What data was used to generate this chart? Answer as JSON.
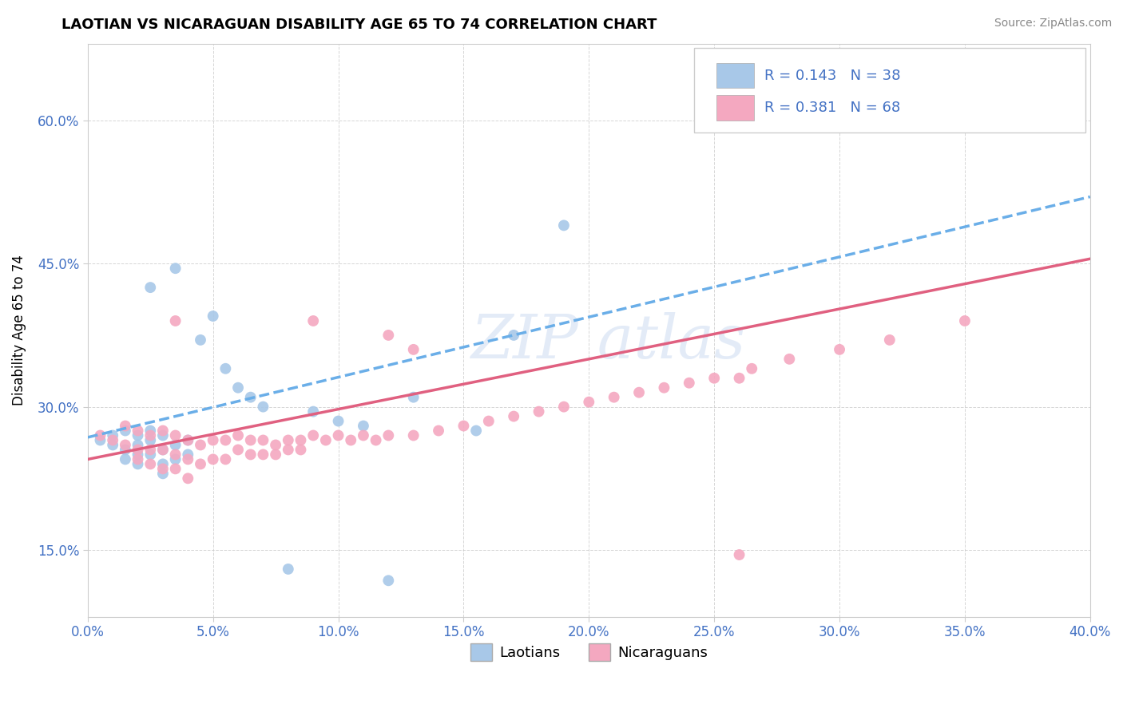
{
  "title": "LAOTIAN VS NICARAGUAN DISABILITY AGE 65 TO 74 CORRELATION CHART",
  "source_text": "Source: ZipAtlas.com",
  "xlim": [
    0.0,
    0.4
  ],
  "ylim": [
    0.08,
    0.68
  ],
  "x_ticks": [
    0.0,
    0.05,
    0.1,
    0.15,
    0.2,
    0.25,
    0.3,
    0.35,
    0.4
  ],
  "y_ticks": [
    0.15,
    0.3,
    0.45,
    0.6
  ],
  "r_laotian": 0.143,
  "n_laotian": 38,
  "r_nicaraguan": 0.381,
  "n_nicaraguan": 68,
  "color_laotian": "#a8c8e8",
  "color_nicaraguan": "#f4a8c0",
  "color_blue": "#4472c4",
  "trend_laotian_color": "#6aaee8",
  "trend_nicaraguan_color": "#e06080",
  "laotian_x": [
    0.005,
    0.01,
    0.01,
    0.015,
    0.015,
    0.015,
    0.02,
    0.02,
    0.02,
    0.02,
    0.025,
    0.025,
    0.025,
    0.03,
    0.03,
    0.03,
    0.03,
    0.035,
    0.035,
    0.04,
    0.04,
    0.045,
    0.05,
    0.055,
    0.06,
    0.065,
    0.07,
    0.08,
    0.09,
    0.1,
    0.11,
    0.12,
    0.13,
    0.155,
    0.17,
    0.19,
    0.025,
    0.035
  ],
  "laotian_y": [
    0.265,
    0.27,
    0.26,
    0.275,
    0.255,
    0.245,
    0.27,
    0.26,
    0.25,
    0.24,
    0.275,
    0.265,
    0.25,
    0.27,
    0.255,
    0.24,
    0.23,
    0.26,
    0.245,
    0.265,
    0.25,
    0.37,
    0.395,
    0.34,
    0.32,
    0.31,
    0.3,
    0.13,
    0.295,
    0.285,
    0.28,
    0.118,
    0.31,
    0.275,
    0.375,
    0.49,
    0.425,
    0.445
  ],
  "nicaraguan_x": [
    0.005,
    0.01,
    0.015,
    0.015,
    0.02,
    0.02,
    0.02,
    0.025,
    0.025,
    0.025,
    0.03,
    0.03,
    0.03,
    0.035,
    0.035,
    0.035,
    0.04,
    0.04,
    0.04,
    0.045,
    0.045,
    0.05,
    0.05,
    0.055,
    0.055,
    0.06,
    0.06,
    0.065,
    0.065,
    0.07,
    0.07,
    0.075,
    0.075,
    0.08,
    0.08,
    0.085,
    0.085,
    0.09,
    0.095,
    0.1,
    0.105,
    0.11,
    0.115,
    0.12,
    0.13,
    0.14,
    0.15,
    0.16,
    0.17,
    0.18,
    0.19,
    0.2,
    0.21,
    0.22,
    0.23,
    0.24,
    0.25,
    0.265,
    0.28,
    0.3,
    0.32,
    0.35,
    0.26,
    0.26,
    0.035,
    0.09,
    0.12,
    0.13
  ],
  "nicaraguan_y": [
    0.27,
    0.265,
    0.28,
    0.26,
    0.275,
    0.255,
    0.245,
    0.27,
    0.255,
    0.24,
    0.275,
    0.255,
    0.235,
    0.27,
    0.25,
    0.235,
    0.265,
    0.245,
    0.225,
    0.26,
    0.24,
    0.265,
    0.245,
    0.265,
    0.245,
    0.27,
    0.255,
    0.265,
    0.25,
    0.265,
    0.25,
    0.26,
    0.25,
    0.265,
    0.255,
    0.265,
    0.255,
    0.27,
    0.265,
    0.27,
    0.265,
    0.27,
    0.265,
    0.27,
    0.27,
    0.275,
    0.28,
    0.285,
    0.29,
    0.295,
    0.3,
    0.305,
    0.31,
    0.315,
    0.32,
    0.325,
    0.33,
    0.34,
    0.35,
    0.36,
    0.37,
    0.39,
    0.33,
    0.145,
    0.39,
    0.39,
    0.375,
    0.36
  ],
  "trend_laotian_x0": 0.0,
  "trend_laotian_y0": 0.268,
  "trend_laotian_x1": 0.4,
  "trend_laotian_y1": 0.52,
  "trend_nicaraguan_x0": 0.0,
  "trend_nicaraguan_y0": 0.245,
  "trend_nicaraguan_x1": 0.4,
  "trend_nicaraguan_y1": 0.455
}
